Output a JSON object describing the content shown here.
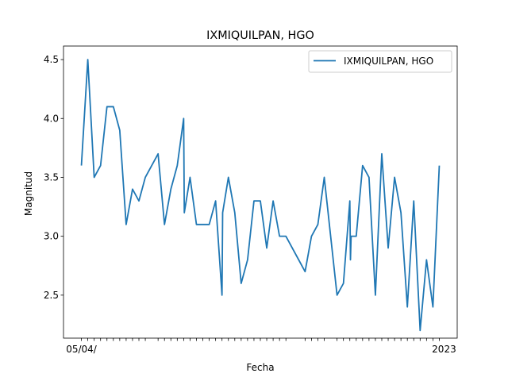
{
  "chart_data": {
    "type": "line",
    "title": "IXMIQUILPAN, HGO",
    "xlabel": "Fecha",
    "ylabel": "Magnitud",
    "ylim": [
      2.135,
      4.615
    ],
    "yticks": [
      2.5,
      3.0,
      3.5,
      4.0,
      4.5
    ],
    "ytick_labels": [
      "2.5",
      "3.0",
      "3.5",
      "4.0",
      "4.5"
    ],
    "x_first_label": "05/04/",
    "x_last_label": "2023",
    "grid": false,
    "legend": "top-right",
    "series": [
      {
        "name": "IXMIQUILPAN, HGO",
        "color": "#1f77b4",
        "values": [
          3.6,
          4.5,
          3.5,
          3.6,
          4.1,
          4.1,
          3.9,
          3.1,
          3.4,
          3.3,
          3.5,
          3.7,
          3.1,
          3.4,
          3.6,
          4.0,
          3.2,
          3.5,
          3.1,
          3.1,
          3.1,
          3.3,
          2.5,
          3.2,
          3.5,
          3.2,
          2.6,
          2.8,
          3.3,
          3.3,
          2.9,
          3.3,
          3.0,
          3.0,
          2.7,
          3.0,
          3.1,
          3.5,
          2.5,
          2.6,
          3.3,
          2.8,
          3.0,
          3.0,
          3.6,
          3.5,
          2.5,
          3.7,
          2.9,
          3.5,
          3.2,
          2.4,
          3.3,
          2.2,
          2.8,
          2.4,
          3.6
        ],
        "x_index": [
          0,
          1,
          2,
          3,
          4,
          5,
          6,
          7,
          8,
          9,
          10,
          12,
          13,
          14,
          15,
          16,
          16.1,
          17,
          18,
          19,
          20,
          21,
          22,
          22.1,
          23,
          24,
          25,
          26,
          27,
          28,
          29,
          30,
          31,
          32,
          35,
          36,
          37,
          38,
          40,
          41,
          42,
          42.1,
          42.2,
          43,
          44,
          45,
          46,
          47,
          48,
          49,
          50,
          51,
          52,
          53,
          54,
          55,
          56
        ]
      }
    ]
  }
}
